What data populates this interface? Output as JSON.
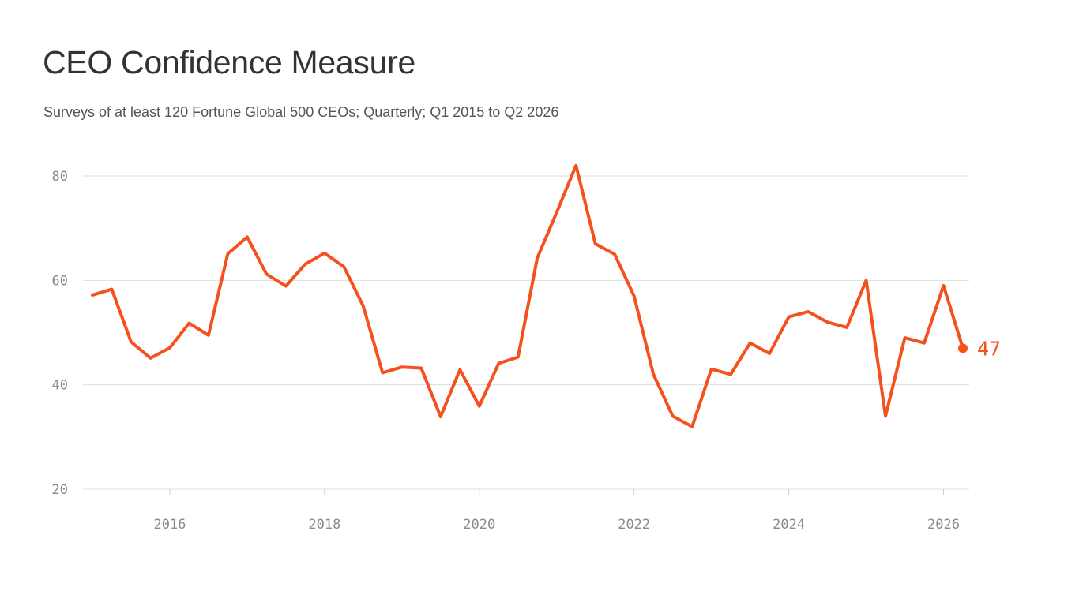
{
  "header": {
    "title": "CEO Confidence Measure",
    "subtitle": "Surveys of at least 120 Fortune Global 500 CEOs; Quarterly; Q1 2015 to Q2 2026"
  },
  "colors": {
    "line": "#f4511e",
    "grid": "#dddddd",
    "tick_text": "#8a8a8a"
  },
  "chart_data": {
    "type": "line",
    "title": "CEO Confidence Measure",
    "subtitle": "Surveys of at least 120 Fortune Global 500 CEOs; Quarterly; Q1 2015 to Q2 2026",
    "xlabel": "",
    "ylabel": "",
    "ylim": [
      20,
      80
    ],
    "xlim": [
      2015,
      2026.3
    ],
    "yticks": [
      20,
      40,
      60,
      80
    ],
    "xticks": [
      2016,
      2018,
      2020,
      2022,
      2024,
      2026
    ],
    "grid": "horizontal",
    "end_label": "47",
    "series": [
      {
        "x": [
          2015.0,
          2015.25,
          2015.5,
          2015.75,
          2016.0,
          2016.25,
          2016.5,
          2016.75,
          2017.0,
          2017.25,
          2017.5,
          2017.75,
          2018.0,
          2018.25,
          2018.5,
          2018.75,
          2019.0,
          2019.25,
          2019.5,
          2019.75,
          2020.0,
          2020.25,
          2020.5,
          2020.75,
          2021.0,
          2021.25,
          2021.5,
          2021.75,
          2022.0,
          2022.25,
          2022.5,
          2022.75,
          2023.0,
          2023.25,
          2023.5,
          2023.75,
          2024.0,
          2024.25,
          2024.5,
          2024.75,
          2025.0,
          2025.25,
          2025.5,
          2025.75,
          2026.0,
          2026.25
        ],
        "values": [
          57.2,
          58.3,
          48.2,
          45.1,
          47.1,
          51.8,
          49.5,
          65.1,
          68.3,
          61.2,
          58.9,
          63.1,
          65.2,
          62.6,
          55.1,
          42.3,
          43.4,
          43.2,
          33.9,
          42.9,
          35.9,
          44.1,
          45.3,
          64.3,
          73.0,
          82.0,
          67.0,
          65.0,
          57.0,
          42.0,
          34.0,
          32.0,
          43.0,
          42.0,
          48.0,
          46.0,
          53.0,
          54.0,
          52.0,
          51.0,
          60.0,
          34.0,
          49.0,
          48.0,
          59.0,
          47.0
        ]
      }
    ]
  }
}
